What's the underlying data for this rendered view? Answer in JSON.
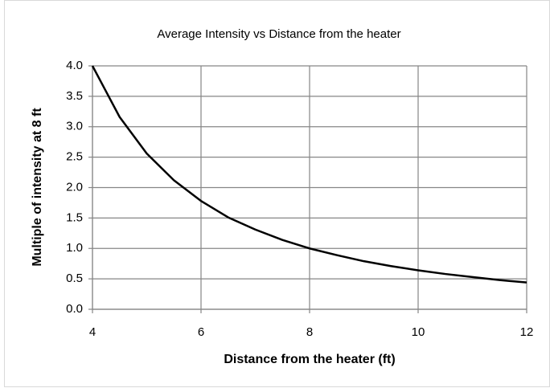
{
  "chart_data": {
    "type": "line",
    "title": "Average Intensity vs Distance from the heater",
    "x_label": "Distance from the heater (ft)",
    "y_label": "Multiple of intensity at 8 ft",
    "x": [
      4,
      4.5,
      5,
      5.5,
      6,
      6.5,
      7,
      7.5,
      8,
      8.5,
      9,
      9.5,
      10,
      10.5,
      11,
      11.5,
      12
    ],
    "values": [
      4,
      3.16,
      2.56,
      2.12,
      1.78,
      1.51,
      1.31,
      1.14,
      1,
      0.89,
      0.79,
      0.71,
      0.64,
      0.58,
      0.53,
      0.48,
      0.44
    ],
    "color": "#000000",
    "xlim": [
      4,
      12
    ],
    "xticks": [
      4,
      6,
      8,
      10,
      12
    ],
    "ylim": [
      0,
      4
    ],
    "yticks": [
      {
        "value": 0,
        "label": "0.0"
      },
      {
        "value": 0.5,
        "label": "0.5"
      },
      {
        "value": 1,
        "label": "1.0"
      },
      {
        "value": 1.5,
        "label": "1.5"
      },
      {
        "value": 2,
        "label": "2.0"
      },
      {
        "value": 2.5,
        "label": "2.5"
      },
      {
        "value": 3,
        "label": "3.0"
      },
      {
        "value": 3.5,
        "label": "3.5"
      },
      {
        "value": 4,
        "label": "4.0"
      }
    ],
    "grid": true
  }
}
